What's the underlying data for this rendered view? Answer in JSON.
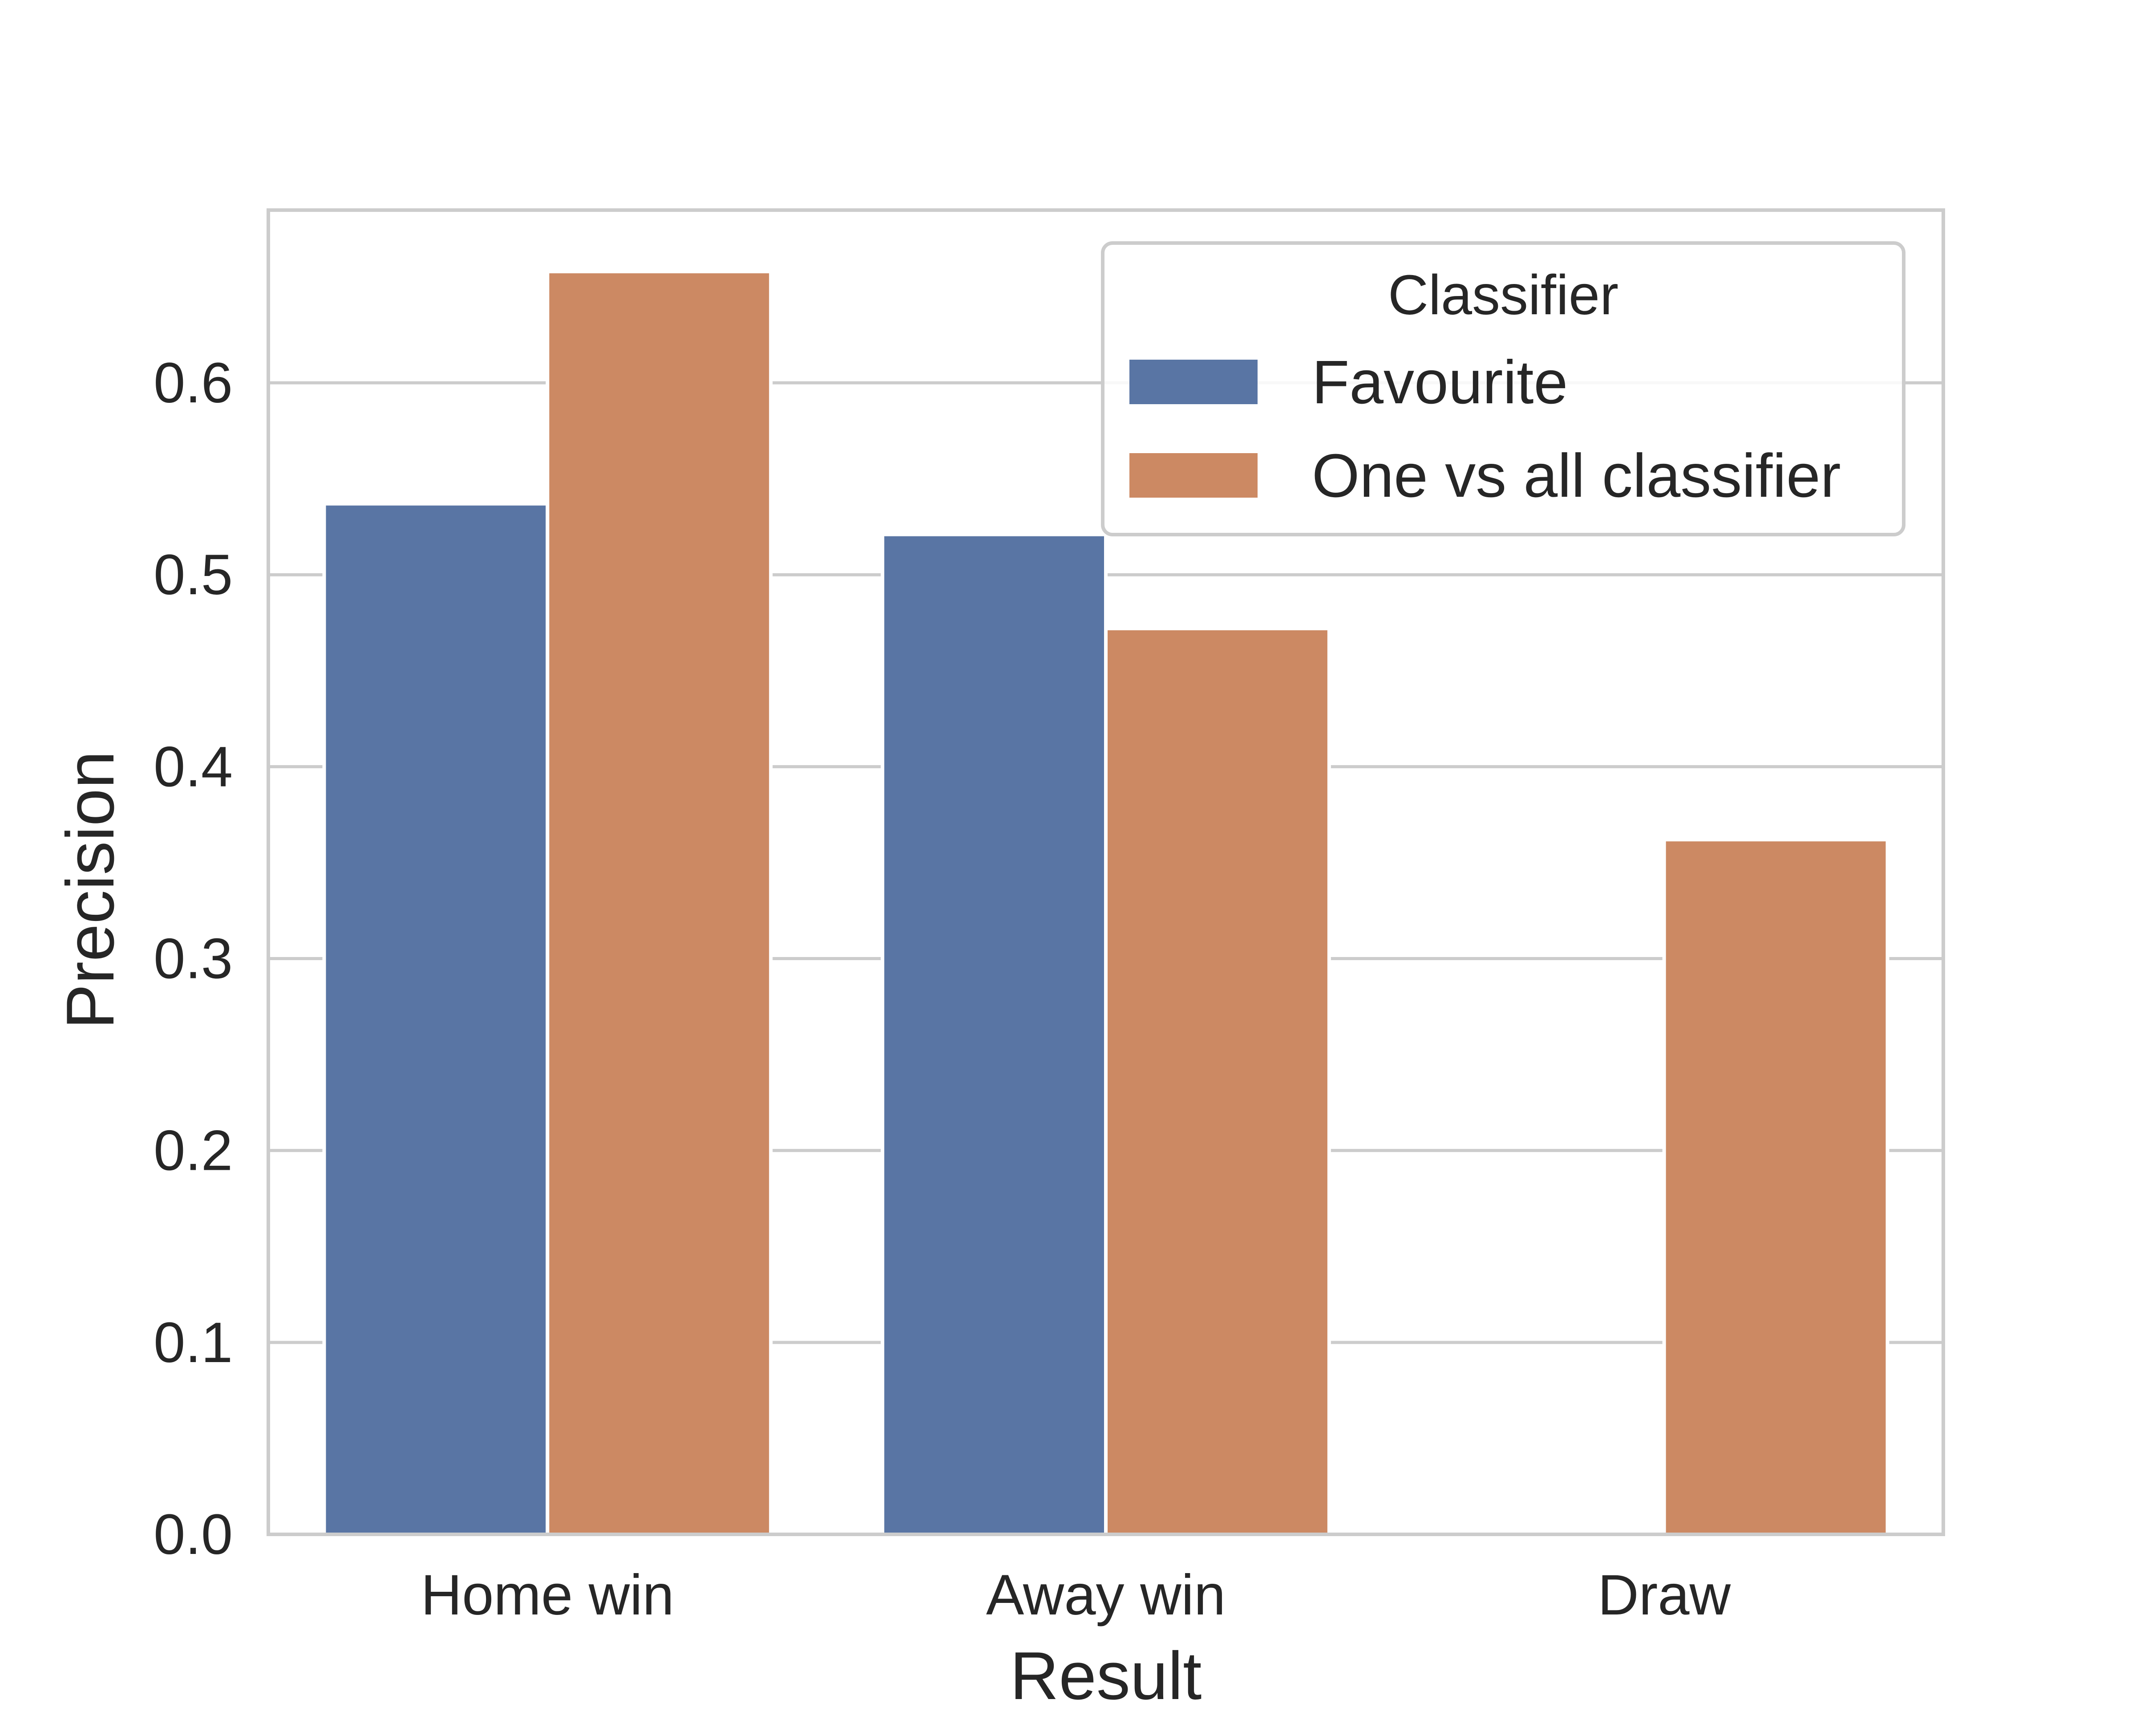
{
  "chart_data": {
    "type": "bar",
    "title": "",
    "xlabel": "Result",
    "ylabel": "Precision",
    "categories": [
      "Home win",
      "Away win",
      "Draw"
    ],
    "series": [
      {
        "name": "Favourite",
        "values": [
          0.537,
          0.521,
          0.0
        ]
      },
      {
        "name": "One vs all classifier",
        "values": [
          0.658,
          0.472,
          0.362
        ]
      }
    ],
    "ylim": [
      0.0,
      0.69
    ],
    "yticks": [
      0.0,
      0.1,
      0.2,
      0.3,
      0.4,
      0.5,
      0.6
    ],
    "ytick_labels": [
      "0.0",
      "0.1",
      "0.2",
      "0.3",
      "0.4",
      "0.5",
      "0.6"
    ],
    "grid": "horizontal",
    "legend": {
      "title": "Classifier",
      "placement": "top-right"
    },
    "colors": {
      "series": [
        "#5975A4",
        "#CC8963"
      ],
      "grid": "#CCCCCC",
      "axes_edge": "#CCCCCC",
      "text": "#262626",
      "background": "#FFFFFF"
    }
  }
}
